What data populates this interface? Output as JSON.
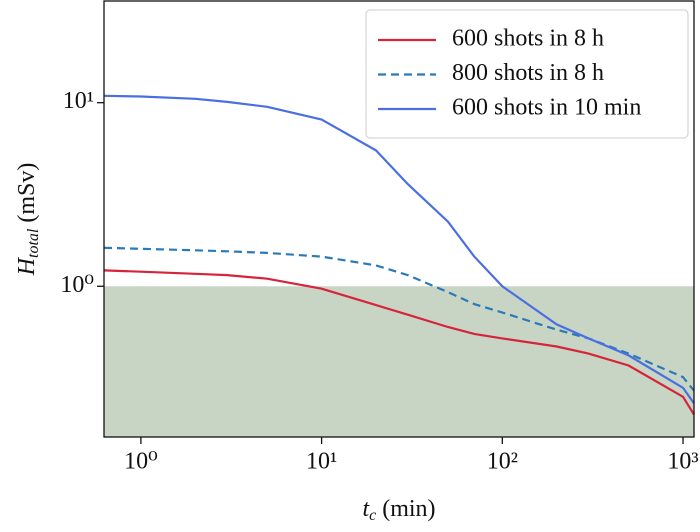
{
  "chart_data": {
    "type": "line",
    "x_label": {
      "symbol": "t",
      "subscript": "c",
      "unit": "(min)"
    },
    "y_label": {
      "symbol": "H",
      "subscript": "total",
      "unit": "(mSv)"
    },
    "xscale": "log",
    "yscale": "log",
    "xlim": [
      0.625,
      1150
    ],
    "ylim": [
      0.151,
      35.8
    ],
    "xticks": [
      {
        "value": 1,
        "label": "10⁰"
      },
      {
        "value": 10,
        "label": "10¹"
      },
      {
        "value": 100,
        "label": "10²"
      },
      {
        "value": 1000,
        "label": "10³"
      }
    ],
    "yticks": [
      {
        "value": 1,
        "label": "10⁰"
      },
      {
        "value": 10,
        "label": "10¹"
      }
    ],
    "shade_below": 1,
    "shade_color": "#c8d5c4",
    "legend": "upper right",
    "x": [
      0.625,
      1,
      2,
      3,
      5,
      10,
      20,
      30,
      50,
      70,
      100,
      200,
      300,
      500,
      1000,
      1150
    ],
    "series": [
      {
        "name": "600 shots in 8 h",
        "color": "#d6243a",
        "dash": false,
        "values": [
          1.22,
          1.2,
          1.17,
          1.15,
          1.1,
          0.97,
          0.79,
          0.7,
          0.6,
          0.55,
          0.52,
          0.47,
          0.43,
          0.37,
          0.25,
          0.2
        ]
      },
      {
        "name": "800 shots in 8 h",
        "color": "#2a7ab8",
        "dash": true,
        "values": [
          1.62,
          1.6,
          1.57,
          1.55,
          1.52,
          1.45,
          1.3,
          1.15,
          0.93,
          0.8,
          0.72,
          0.58,
          0.52,
          0.43,
          0.32,
          0.27
        ]
      },
      {
        "name": "600 shots in 10 min",
        "color": "#4a6fe0",
        "dash": false,
        "values": [
          10.9,
          10.8,
          10.5,
          10.1,
          9.5,
          8.1,
          5.5,
          3.6,
          2.25,
          1.45,
          1.0,
          0.62,
          0.52,
          0.42,
          0.28,
          0.23
        ]
      }
    ]
  }
}
